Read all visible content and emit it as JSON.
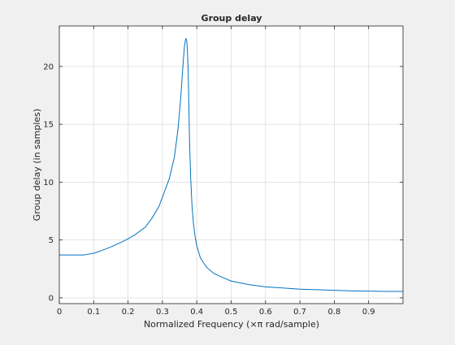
{
  "chart_data": {
    "type": "line",
    "title": "Group delay",
    "xlabel": "Normalized Frequency  (×π rad/sample)",
    "ylabel": "Group delay (in samples)",
    "xlim": [
      0,
      1
    ],
    "ylim": [
      -0.5,
      23.5
    ],
    "xticks": [
      "0",
      "0.1",
      "0.2",
      "0.3",
      "0.4",
      "0.5",
      "0.6",
      "0.7",
      "0.8",
      "0.9"
    ],
    "yticks": [
      "0",
      "5",
      "10",
      "15",
      "20"
    ],
    "grid": true,
    "series": [
      {
        "color": "#0072bd",
        "x": [
          0,
          0.07,
          0.08,
          0.1,
          0.12,
          0.15,
          0.18,
          0.2,
          0.22,
          0.25,
          0.27,
          0.29,
          0.3,
          0.32,
          0.335,
          0.345,
          0.352,
          0.357,
          0.361,
          0.364,
          0.367,
          0.369,
          0.371,
          0.373,
          0.375,
          0.377,
          0.379,
          0.382,
          0.386,
          0.39,
          0.395,
          0.4,
          0.41,
          0.42,
          0.43,
          0.45,
          0.48,
          0.5,
          0.55,
          0.6,
          0.65,
          0.7,
          0.75,
          0.8,
          0.85,
          0.9,
          0.95,
          1.0
        ],
        "y": [
          3.7,
          3.7,
          3.75,
          3.85,
          4.05,
          4.4,
          4.8,
          5.1,
          5.45,
          6.1,
          6.9,
          7.9,
          8.7,
          10.3,
          12.2,
          14.5,
          16.8,
          18.9,
          20.6,
          21.7,
          22.3,
          22.4,
          22.2,
          21.2,
          19.5,
          16.5,
          13.5,
          10.5,
          8.0,
          6.5,
          5.3,
          4.5,
          3.5,
          3.0,
          2.6,
          2.1,
          1.7,
          1.45,
          1.15,
          0.95,
          0.85,
          0.75,
          0.7,
          0.65,
          0.6,
          0.58,
          0.55,
          0.55
        ]
      }
    ]
  }
}
